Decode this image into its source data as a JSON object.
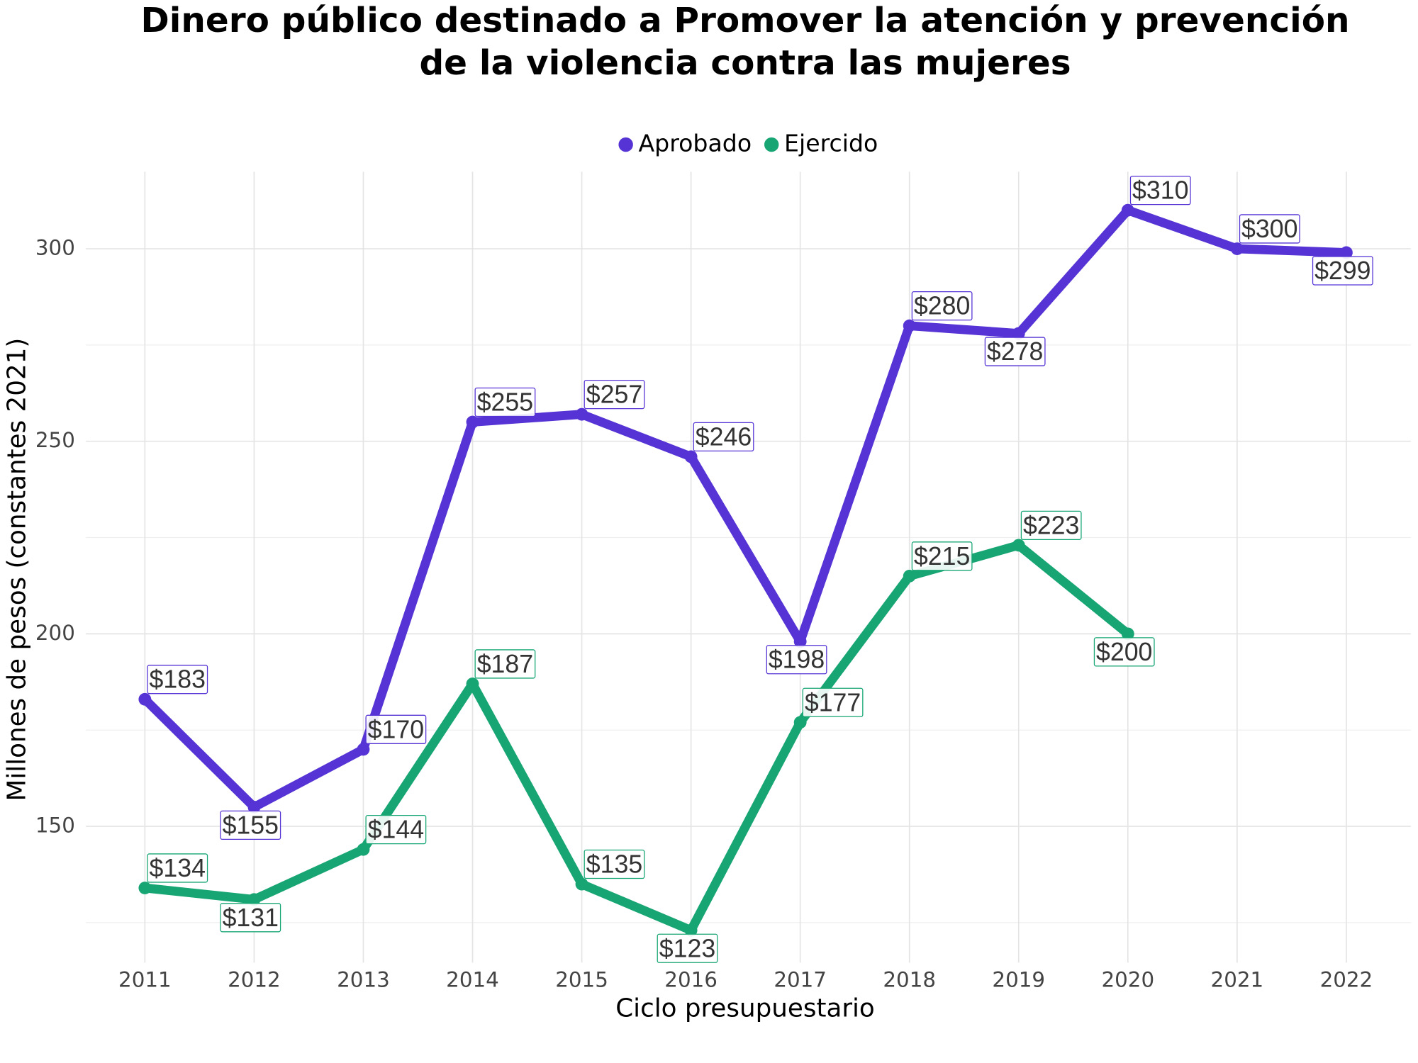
{
  "chart_data": {
    "type": "line",
    "title": [
      "Dinero público destinado a Promover la atención y prevención",
      "de la violencia contra las mujeres"
    ],
    "x_label": "Ciclo presupuestario",
    "y_label": "Millones de pesos (constantes 2021)",
    "x": [
      2011,
      2012,
      2013,
      2014,
      2015,
      2016,
      2017,
      2018,
      2019,
      2020,
      2021,
      2022
    ],
    "xlim": [
      2010.46,
      2022.59
    ],
    "xticks": [
      2011,
      2012,
      2013,
      2014,
      2015,
      2016,
      2017,
      2018,
      2019,
      2020,
      2021,
      2022
    ],
    "ylim": [
      114.6,
      320
    ],
    "yticks": [
      150,
      200,
      250,
      300
    ],
    "y_minor_ticks": [
      125,
      175,
      225,
      275
    ],
    "grid": true,
    "legend_position": "top",
    "series": [
      {
        "name": "Aprobado",
        "color": "#5533d5",
        "values": [
          183,
          155,
          170,
          255,
          257,
          246,
          198,
          280,
          278,
          310,
          300,
          299
        ],
        "value_labels": [
          "$183",
          "$155",
          "$170",
          "$255",
          "$257",
          "$246",
          "$198",
          "$280",
          "$278",
          "$310",
          "$300",
          "$299"
        ]
      },
      {
        "name": "Ejercido",
        "color": "#17a673",
        "values": [
          134,
          131,
          144,
          187,
          135,
          123,
          177,
          215,
          223,
          200,
          null,
          null
        ],
        "value_labels": [
          "$134",
          "$131",
          "$144",
          "$187",
          "$135",
          "$123",
          "$177",
          "$215",
          "$223",
          "$200",
          null,
          null
        ]
      }
    ]
  }
}
